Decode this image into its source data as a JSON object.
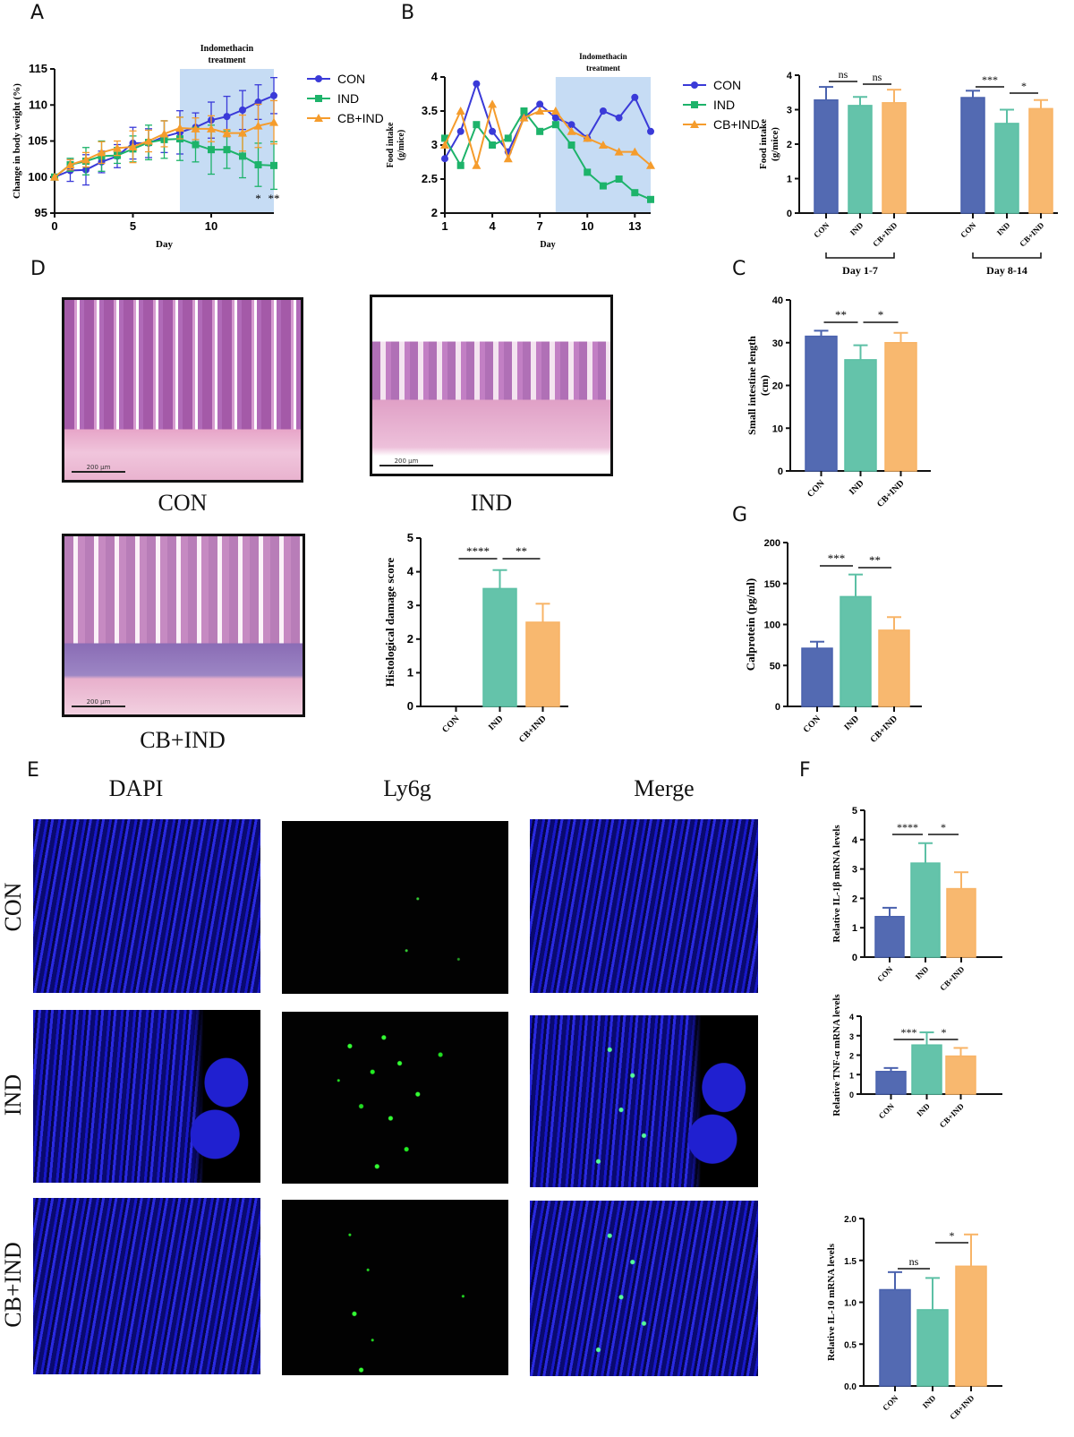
{
  "panel_labels": {
    "A": "A",
    "B": "B",
    "C": "C",
    "D": "D",
    "E": "E",
    "F": "F",
    "G": "G"
  },
  "colors": {
    "CON": "#4a62ae",
    "IND": "#5cc0a5",
    "CB+IND": "#f8b467",
    "line_CON": "#3a3ad8",
    "line_IND": "#1db36a",
    "line_CB+IND": "#f59c2c",
    "treatment_shade": "#c6dcf4"
  },
  "histology": {
    "scale_bar": "200 μm",
    "captions": [
      "CON",
      "IND",
      "CB+IND"
    ]
  },
  "immunofluorescence": {
    "columns": [
      "DAPI",
      "Ly6g",
      "Merge"
    ],
    "rows": [
      "CON",
      "IND",
      "CB+IND"
    ]
  },
  "chart_data": [
    {
      "panel": "A",
      "type": "line",
      "xlabel": "Day",
      "ylabel": "Change in  body weight (%)",
      "xlim": [
        0,
        14
      ],
      "ylim": [
        95,
        115
      ],
      "xticks": [
        0,
        5,
        10
      ],
      "yticks": [
        95,
        100,
        105,
        110,
        115
      ],
      "shaded_region": {
        "x": [
          8,
          14
        ],
        "label": "Indomethacin treatment"
      },
      "legend": "right",
      "x": [
        0,
        1,
        2,
        3,
        4,
        5,
        6,
        7,
        8,
        9,
        10,
        11,
        12,
        13,
        14
      ],
      "series": [
        {
          "name": "CON",
          "marker": "circle",
          "values": [
            100,
            100.9,
            101,
            102.1,
            102.9,
            104.7,
            104.7,
            105.6,
            106.2,
            106.9,
            107.9,
            108.4,
            109.3,
            110.4,
            111.3
          ],
          "errors": [
            0,
            1.5,
            2.1,
            1.5,
            1.6,
            2.2,
            2,
            2.2,
            3,
            2,
            2.5,
            2.8,
            2.7,
            2.4,
            2.5
          ]
        },
        {
          "name": "IND",
          "marker": "square",
          "values": [
            100,
            101.7,
            102.2,
            102.9,
            103,
            103.9,
            104.8,
            105.2,
            105.3,
            104.5,
            103.8,
            103.8,
            102.9,
            101.7,
            101.6
          ],
          "errors": [
            0,
            0.9,
            1.9,
            2.1,
            1.1,
            1.8,
            2.4,
            2.6,
            3,
            2.4,
            3.4,
            2.6,
            3,
            3,
            3.3
          ]
        },
        {
          "name": "CB+IND",
          "marker": "triangle",
          "values": [
            100,
            101.7,
            102.4,
            103.4,
            104,
            104.2,
            105,
            106,
            106.8,
            106.7,
            106.7,
            106.1,
            106.1,
            107.1,
            107.6
          ],
          "errors": [
            0,
            0.7,
            1,
            1.5,
            1,
            2.2,
            1.5,
            1.8,
            1.5,
            1.5,
            1.8,
            0.5,
            2.5,
            3,
            3
          ]
        }
      ],
      "annotations": [
        {
          "x": 13,
          "text": "*"
        },
        {
          "x": 14,
          "text": "**"
        }
      ]
    },
    {
      "panel": "B",
      "type": "line",
      "xlabel": "Day",
      "ylabel": "Food intake (g/mice)",
      "xlim": [
        1,
        14
      ],
      "ylim": [
        2.0,
        4.0
      ],
      "xticks": [
        1,
        4,
        7,
        10,
        13
      ],
      "yticks": [
        2.0,
        2.5,
        3.0,
        3.5,
        4.0
      ],
      "shaded_region": {
        "x": [
          8,
          14
        ],
        "label": "Indomethacin treatment"
      },
      "legend": "right",
      "x": [
        1,
        2,
        3,
        4,
        5,
        6,
        7,
        8,
        9,
        10,
        11,
        12,
        13,
        14
      ],
      "series": [
        {
          "name": "CON",
          "marker": "circle",
          "values": [
            2.8,
            3.2,
            3.9,
            3.2,
            2.9,
            3.4,
            3.6,
            3.4,
            3.3,
            3.1,
            3.5,
            3.4,
            3.7,
            3.2
          ]
        },
        {
          "name": "IND",
          "marker": "square",
          "values": [
            3.1,
            2.7,
            3.3,
            3.0,
            3.1,
            3.5,
            3.2,
            3.3,
            3.0,
            2.6,
            2.4,
            2.5,
            2.3,
            2.2
          ]
        },
        {
          "name": "CB+IND",
          "marker": "triangle",
          "values": [
            3.0,
            3.5,
            2.7,
            3.6,
            2.8,
            3.4,
            3.5,
            3.5,
            3.2,
            3.1,
            3.0,
            2.9,
            2.9,
            2.7
          ]
        }
      ]
    },
    {
      "panel": "B-right",
      "type": "bar",
      "ylabel": "Food intake (g/mice)",
      "ylim": [
        0,
        4
      ],
      "yticks": [
        0,
        1,
        2,
        3,
        4
      ],
      "categories": [
        "CON",
        "IND",
        "CB+IND",
        "CON",
        "IND",
        "CB+IND"
      ],
      "groups": [
        {
          "label": "Day 1-7",
          "members": [
            0,
            1,
            2
          ]
        },
        {
          "label": "Day 8-14",
          "members": [
            3,
            4,
            5
          ]
        }
      ],
      "values": [
        3.28,
        3.12,
        3.2,
        3.35,
        2.6,
        3.03
      ],
      "errors": [
        0.38,
        0.25,
        0.38,
        0.2,
        0.4,
        0.25
      ],
      "significance": [
        {
          "from": 0,
          "to": 1,
          "label": "ns"
        },
        {
          "from": 1,
          "to": 2,
          "label": "ns"
        },
        {
          "from": 3,
          "to": 4,
          "label": "***"
        },
        {
          "from": 4,
          "to": 5,
          "label": "*"
        }
      ]
    },
    {
      "panel": "C",
      "type": "bar",
      "ylabel": "Small intestine length (cm)",
      "ylim": [
        0,
        40
      ],
      "yticks": [
        0,
        10,
        20,
        30,
        40
      ],
      "categories": [
        "CON",
        "IND",
        "CB+IND"
      ],
      "values": [
        31.5,
        26,
        30
      ],
      "errors": [
        1.3,
        3.4,
        2.3
      ],
      "significance": [
        {
          "from": 0,
          "to": 1,
          "label": "**"
        },
        {
          "from": 1,
          "to": 2,
          "label": "*"
        }
      ]
    },
    {
      "panel": "D",
      "type": "bar",
      "ylabel": "Histological damage score",
      "ylim": [
        0,
        5
      ],
      "yticks": [
        0,
        1,
        2,
        3,
        4,
        5
      ],
      "categories": [
        "CON",
        "IND",
        "CB+IND"
      ],
      "values": [
        0,
        3.5,
        2.5
      ],
      "errors": [
        0,
        0.55,
        0.55
      ],
      "significance": [
        {
          "from": 0,
          "to": 1,
          "label": "****"
        },
        {
          "from": 1,
          "to": 2,
          "label": "**"
        }
      ]
    },
    {
      "panel": "G",
      "type": "bar",
      "ylabel": "Calprotein (pg/ml)",
      "ylim": [
        0,
        200
      ],
      "yticks": [
        0,
        50,
        100,
        150,
        200
      ],
      "categories": [
        "CON",
        "IND",
        "CB+IND"
      ],
      "values": [
        71,
        134,
        93
      ],
      "errors": [
        8,
        27,
        16
      ],
      "significance": [
        {
          "from": 0,
          "to": 1,
          "label": "***"
        },
        {
          "from": 1,
          "to": 2,
          "label": "**"
        }
      ]
    },
    {
      "panel": "F-1",
      "type": "bar",
      "ylabel": "Relative IL-1β mRNA levels",
      "ylim": [
        0,
        5
      ],
      "yticks": [
        0,
        1,
        2,
        3,
        4,
        5
      ],
      "categories": [
        "CON",
        "IND",
        "CB+IND"
      ],
      "values": [
        1.38,
        3.2,
        2.33
      ],
      "errors": [
        0.3,
        0.68,
        0.56
      ],
      "significance": [
        {
          "from": 0,
          "to": 1,
          "label": "****"
        },
        {
          "from": 1,
          "to": 2,
          "label": "*"
        }
      ]
    },
    {
      "panel": "F-2",
      "type": "bar",
      "ylabel": "Relative TNF-α mRNA levels",
      "ylim": [
        0,
        4
      ],
      "yticks": [
        0,
        1,
        2,
        3,
        4
      ],
      "categories": [
        "CON",
        "IND",
        "CB+IND"
      ],
      "values": [
        1.16,
        2.52,
        1.95
      ],
      "errors": [
        0.18,
        0.65,
        0.42
      ],
      "significance": [
        {
          "from": 0,
          "to": 1,
          "label": "***"
        },
        {
          "from": 1,
          "to": 2,
          "label": "*"
        }
      ]
    },
    {
      "panel": "F-3",
      "type": "bar",
      "ylabel": "Relative IL-10 mRNA levels",
      "ylim": [
        0,
        2.0
      ],
      "yticks": [
        "0.0",
        "0.5",
        "1.0",
        "1.5",
        "2.0"
      ],
      "categories": [
        "CON",
        "IND",
        "CB+IND"
      ],
      "values": [
        1.15,
        0.91,
        1.43
      ],
      "errors": [
        0.21,
        0.38,
        0.38
      ],
      "significance": [
        {
          "from": 0,
          "to": 1,
          "label": "ns"
        },
        {
          "from": 1,
          "to": 2,
          "label": "*"
        }
      ]
    }
  ]
}
